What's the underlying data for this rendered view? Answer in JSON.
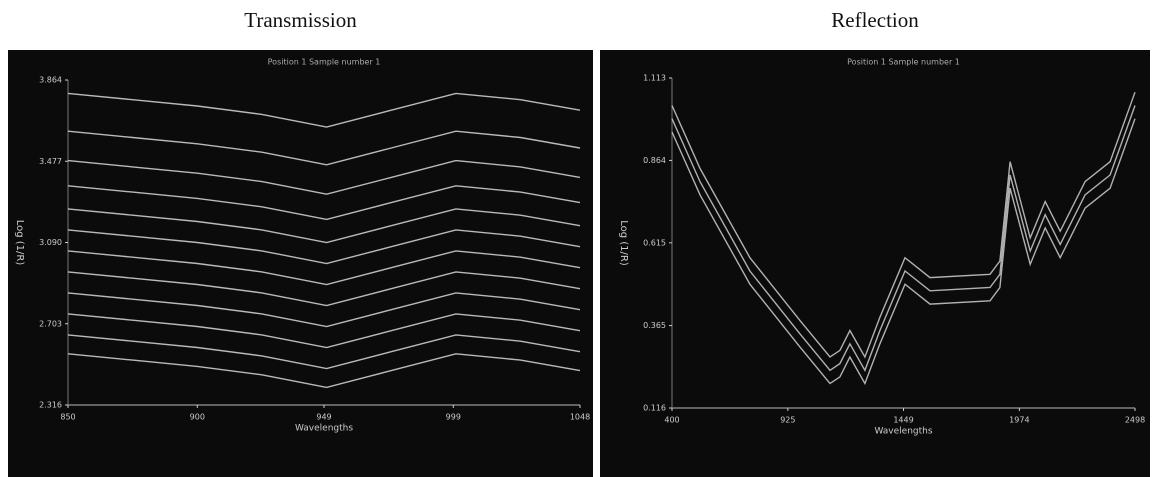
{
  "chart_data": [
    {
      "type": "line",
      "title": "Transmission",
      "subtitle": "Position 1 Sample number 1",
      "x_label": "Wavelengths",
      "y_label": "Log (1/R)",
      "color": "#d8d8d8",
      "x": [
        850,
        875,
        900,
        925,
        950,
        975,
        1000,
        1025,
        1048
      ],
      "xlim": [
        850,
        1048
      ],
      "xticks": [
        850,
        900,
        949,
        999,
        1048
      ],
      "ylim": [
        2.316,
        3.864
      ],
      "yticks": [
        2.316,
        2.703,
        {
          "value": 3.09,
          "label": "3.090"
        },
        3.477,
        3.864
      ],
      "series": [
        {
          "values": [
            3.8,
            3.77,
            3.74,
            3.7,
            3.64,
            3.72,
            3.8,
            3.77,
            3.72
          ]
        },
        {
          "values": [
            3.62,
            3.59,
            3.56,
            3.52,
            3.46,
            3.54,
            3.62,
            3.59,
            3.54
          ]
        },
        {
          "values": [
            3.48,
            3.45,
            3.42,
            3.38,
            3.32,
            3.4,
            3.48,
            3.45,
            3.4
          ]
        },
        {
          "values": [
            3.36,
            3.33,
            3.3,
            3.26,
            3.2,
            3.28,
            3.36,
            3.33,
            3.28
          ]
        },
        {
          "values": [
            3.25,
            3.22,
            3.19,
            3.15,
            3.09,
            3.17,
            3.25,
            3.22,
            3.17
          ]
        },
        {
          "values": [
            3.15,
            3.12,
            3.09,
            3.05,
            2.99,
            3.07,
            3.15,
            3.12,
            3.07
          ]
        },
        {
          "values": [
            3.05,
            3.02,
            2.99,
            2.95,
            2.89,
            2.97,
            3.05,
            3.02,
            2.97
          ]
        },
        {
          "values": [
            2.95,
            2.92,
            2.89,
            2.85,
            2.79,
            2.87,
            2.95,
            2.92,
            2.87
          ]
        },
        {
          "values": [
            2.85,
            2.82,
            2.79,
            2.75,
            2.69,
            2.77,
            2.85,
            2.82,
            2.77
          ]
        },
        {
          "values": [
            2.75,
            2.72,
            2.69,
            2.65,
            2.59,
            2.67,
            2.75,
            2.72,
            2.67
          ]
        },
        {
          "values": [
            2.65,
            2.62,
            2.59,
            2.55,
            2.49,
            2.57,
            2.65,
            2.62,
            2.57
          ]
        },
        {
          "values": [
            2.56,
            2.53,
            2.5,
            2.46,
            2.4,
            2.48,
            2.56,
            2.53,
            2.48
          ]
        }
      ]
    },
    {
      "type": "line",
      "title": "Reflection",
      "subtitle": "Position 1 Sample number 1",
      "x_label": "Wavelengths",
      "y_label": "Log (1/R)",
      "color": "#cfcfcf",
      "x": [
        400,
        527,
        753,
        980,
        1116,
        1161,
        1206,
        1274,
        1342,
        1456,
        1569,
        1841,
        1886,
        1932,
        2023,
        2091,
        2159,
        2272,
        2385,
        2498
      ],
      "xlim": [
        400,
        2498
      ],
      "xticks": [
        400,
        925,
        1449,
        1974,
        2498
      ],
      "ylim": [
        0.116,
        1.113
      ],
      "yticks": [
        0.116,
        0.365,
        0.615,
        0.864,
        1.113
      ],
      "series": [
        {
          "values": [
            1.03,
            0.84,
            0.57,
            0.38,
            0.27,
            0.29,
            0.35,
            0.27,
            0.39,
            0.57,
            0.51,
            0.52,
            0.56,
            0.86,
            0.63,
            0.74,
            0.65,
            0.8,
            0.86,
            1.07
          ]
        },
        {
          "values": [
            0.99,
            0.8,
            0.53,
            0.34,
            0.23,
            0.25,
            0.31,
            0.23,
            0.35,
            0.53,
            0.47,
            0.48,
            0.52,
            0.82,
            0.59,
            0.7,
            0.61,
            0.76,
            0.82,
            1.03
          ]
        },
        {
          "values": [
            0.95,
            0.76,
            0.49,
            0.3,
            0.19,
            0.21,
            0.27,
            0.19,
            0.31,
            0.49,
            0.43,
            0.44,
            0.48,
            0.78,
            0.55,
            0.66,
            0.57,
            0.72,
            0.78,
            0.99
          ]
        }
      ]
    }
  ]
}
